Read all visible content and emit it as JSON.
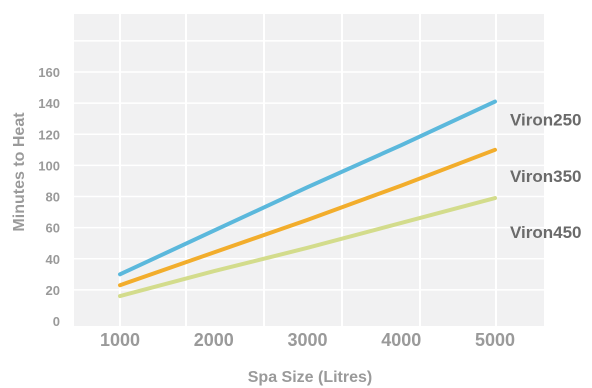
{
  "chart_data": {
    "type": "line",
    "xlabel": "Spa Size (Litres)",
    "ylabel": "Minutes to Heat",
    "x": [
      1000,
      2000,
      3000,
      4000,
      5000
    ],
    "x_ticks": [
      "1000",
      "2000",
      "3000",
      "4000",
      "5000"
    ],
    "y_ticks": [
      "0",
      "20",
      "40",
      "60",
      "80",
      "100",
      "120",
      "140",
      "160"
    ],
    "grid": true,
    "series": [
      {
        "name": "Viron250",
        "color": "#5bb8dc",
        "values": [
          30,
          58,
          86,
          113,
          141
        ]
      },
      {
        "name": "Viron350",
        "color": "#f2ad2c",
        "values": [
          23,
          44,
          65,
          87,
          110
        ]
      },
      {
        "name": "Viron450",
        "color": "#d3dc8c",
        "values": [
          16,
          32,
          47,
          63,
          79
        ]
      }
    ]
  }
}
